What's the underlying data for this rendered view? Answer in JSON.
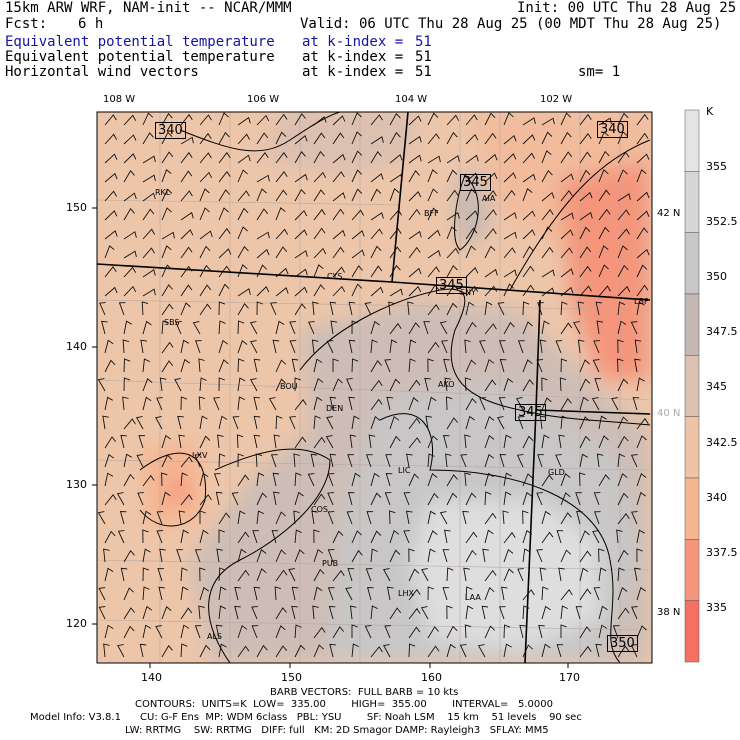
{
  "header": {
    "model": "15km ARW WRF, NAM-init -- NCAR/MMM",
    "init": "Init: 00 UTC Thu 28 Aug 25",
    "fcst_label": "Fcst:",
    "fcst_value": "6 h",
    "valid": "Valid: 06 UTC Thu 28 Aug 25 (00 MDT Thu 28 Aug 25)",
    "fields": [
      {
        "name": "Equivalent potential temperature",
        "level": "at k-index =",
        "k": "51"
      },
      {
        "name": "Equivalent potential temperature",
        "level": "at k-index =",
        "k": "51"
      },
      {
        "name": "Horizontal wind vectors",
        "level": "at k-index =",
        "k": "51"
      }
    ],
    "smoothing": "sm= 1"
  },
  "axes": {
    "top_lon": [
      "108 W",
      "106 W",
      "104 W",
      "102 W"
    ],
    "left_y": [
      "150",
      "140",
      "130",
      "120"
    ],
    "bottom_x": [
      "140",
      "150",
      "160",
      "170"
    ],
    "right_lat": [
      "42 N",
      "40 N",
      "38 N"
    ]
  },
  "colorbar": {
    "unit": "K",
    "levels": [
      "355",
      "352.5",
      "350",
      "347.5",
      "345",
      "342.5",
      "340",
      "337.5",
      "335"
    ],
    "colors": [
      "#e4e4e4",
      "#d6d6d6",
      "#c8c6c6",
      "#c3b8b4",
      "#dcc0b0",
      "#eec4a6",
      "#f6b692",
      "#f4957c",
      "#f47060"
    ]
  },
  "map": {
    "stations": [
      "RKL",
      "BFF",
      "AIA",
      "CYS",
      "SNY",
      "LBF",
      "SBS",
      "BOU",
      "AKO",
      "DEN",
      "LXV",
      "LIC",
      "GLD",
      "COS",
      "PUB",
      "LHX",
      "LAA",
      "ALS"
    ],
    "contour_labels": [
      "340",
      "345",
      "345",
      "340",
      "345",
      "350"
    ]
  },
  "footer": {
    "barbs": "BARB VECTORS:  FULL BARB = 10 kts",
    "contours": "CONTOURS:  UNITS=K  LOW=  335.00        HIGH=  355.00        INTERVAL=   5.0000",
    "model_info_1": "Model Info: V3.8.1      CU: G-F Ens  MP: WDM 6class   PBL: YSU        SF: Noah LSM    15 km    51 levels    90 sec",
    "model_info_2": "LW: RRTMG    SW: RRTMG   DIFF: full   KM: 2D Smagor DAMP: Rayleigh3   SFLAY: MM5"
  }
}
